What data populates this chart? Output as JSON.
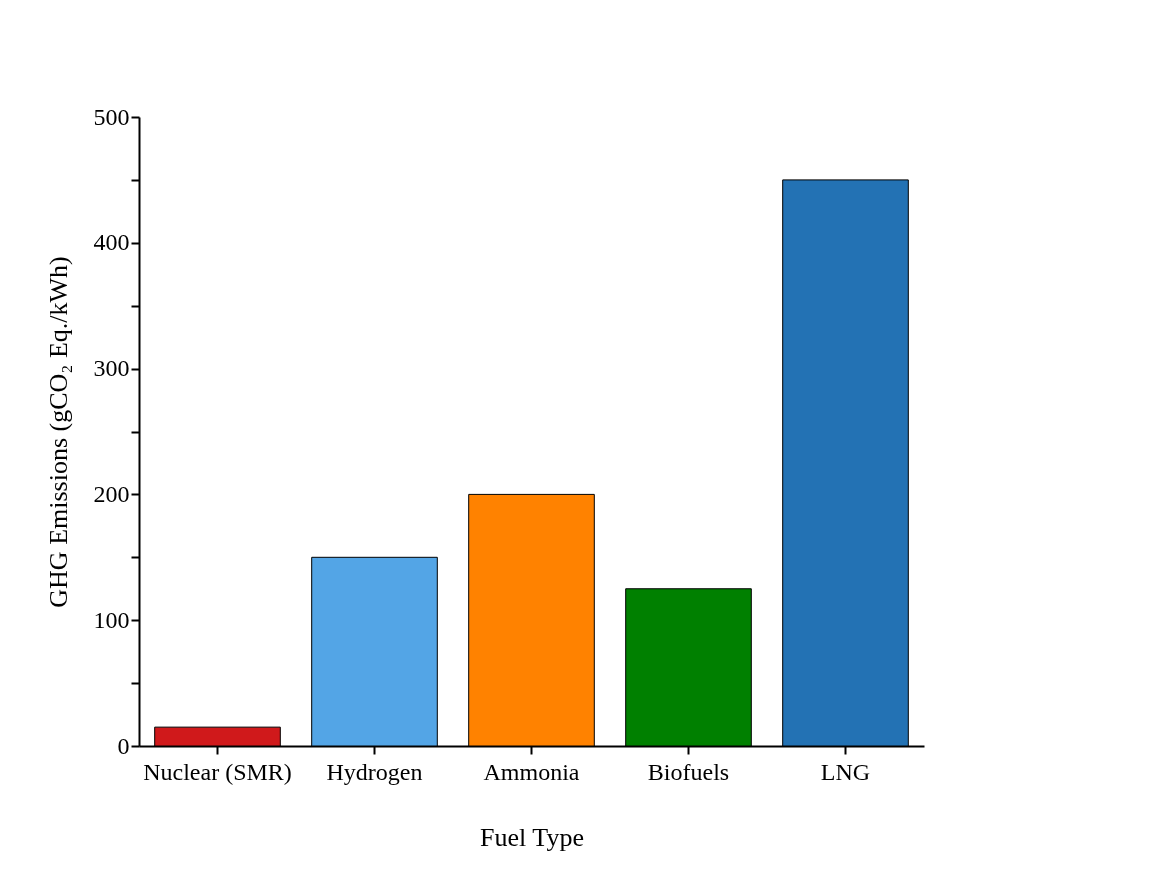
{
  "chart_data": {
    "type": "bar",
    "xlabel": "Fuel Type",
    "ylabel": "GHG Emissions (gCO₂ Eq./kWh)",
    "categories": [
      "Nuclear (SMR)",
      "Hydrogen",
      "Ammonia",
      "Biofuels",
      "LNG"
    ],
    "values": [
      15,
      150,
      200,
      125,
      450
    ],
    "colors": [
      "#d0191b",
      "#53a5e6",
      "#ff8200",
      "#008000",
      "#2372b4"
    ],
    "ylim": [
      0,
      500
    ],
    "yticks": [
      0,
      {
        "value": 50,
        "label": null
      },
      100,
      {
        "value": 150,
        "label": null
      },
      200,
      {
        "value": 250,
        "label": null
      },
      300,
      {
        "value": 350,
        "label": null
      },
      400,
      {
        "value": 450,
        "label": null
      },
      500
    ],
    "grid": false
  }
}
